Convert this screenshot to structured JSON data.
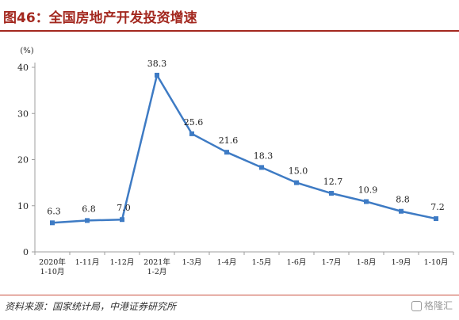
{
  "header": {
    "title": "图46：全国房地产开发投资增速"
  },
  "footer": {
    "source": "资料来源：国家统计局，中港证券研究所",
    "watermark": "格隆汇"
  },
  "colors": {
    "accent": "#a3281f",
    "series": "#3e7bc4",
    "grid": "#9e9e9e"
  },
  "chart_data": {
    "type": "line",
    "title": "",
    "xlabel": "",
    "ylabel": "(%)",
    "ylim": [
      0,
      40
    ],
    "yticks": [
      0,
      10,
      20,
      30,
      40
    ],
    "grid": false,
    "legend": "none",
    "categories": [
      [
        "2020年",
        "1-10月"
      ],
      [
        "1-11月"
      ],
      [
        "1-12月"
      ],
      [
        "2021年",
        "1-2月"
      ],
      [
        "1-3月"
      ],
      [
        "1-4月"
      ],
      [
        "1-5月"
      ],
      [
        "1-6月"
      ],
      [
        "1-7月"
      ],
      [
        "1-8月"
      ],
      [
        "1-9月"
      ],
      [
        "1-10月"
      ]
    ],
    "series": [
      {
        "values": [
          6.3,
          6.8,
          7.0,
          38.3,
          25.6,
          21.6,
          18.3,
          15.0,
          12.7,
          10.9,
          8.8,
          7.2
        ],
        "labels": [
          "6.3",
          "6.8",
          "7.0",
          "38.3",
          "25.6",
          "21.6",
          "18.3",
          "15.0",
          "12.7",
          "10.9",
          "8.8",
          "7.2"
        ]
      }
    ]
  }
}
